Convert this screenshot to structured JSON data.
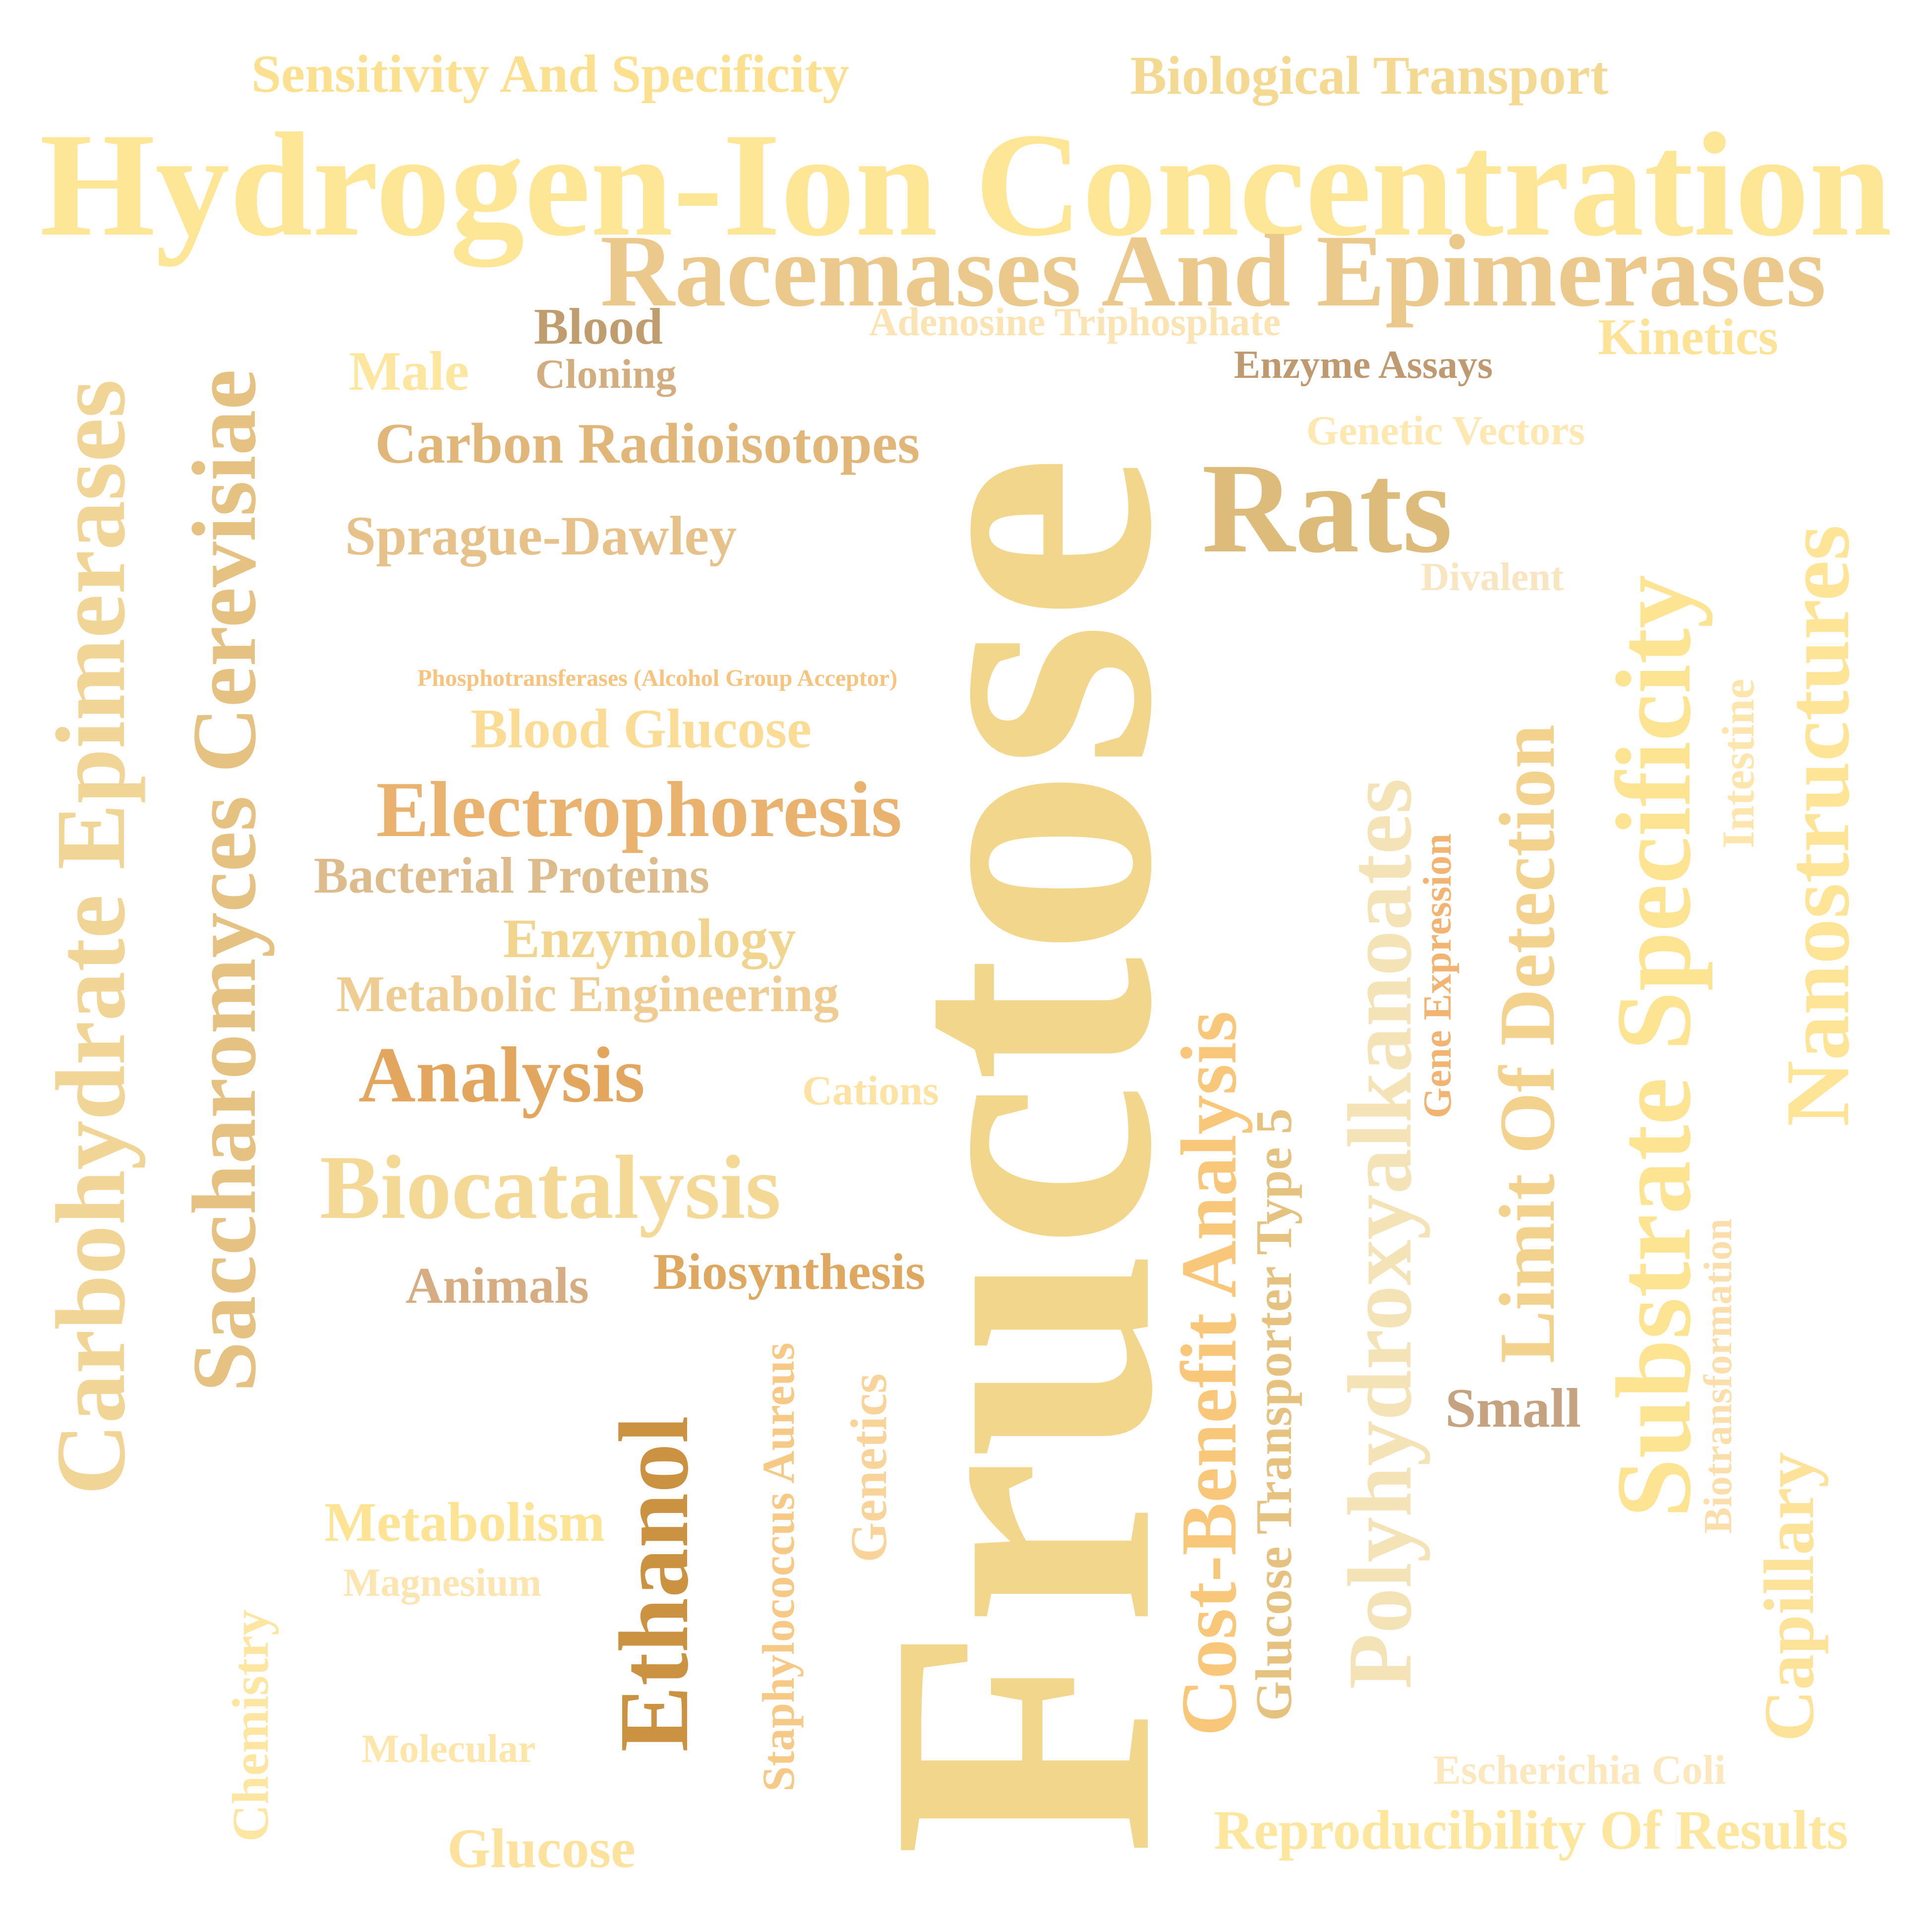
{
  "words": [
    {
      "text": "Fructose",
      "color": "#f1d68c"
    },
    {
      "text": "Hydrogen-Ion Concentration",
      "color": "#fde696"
    },
    {
      "text": "Racemases And Epimerases",
      "color": "#ebc88c"
    },
    {
      "text": "Sensitivity And Specificity",
      "color": "#fbe08f"
    },
    {
      "text": "Biological Transport",
      "color": "#f4d993"
    },
    {
      "text": "Blood",
      "color": "#bf9d6e"
    },
    {
      "text": "Adenosine Triphosphate",
      "color": "#fae4b4"
    },
    {
      "text": "Kinetics",
      "color": "#fde397"
    },
    {
      "text": "Male",
      "color": "#fde69e"
    },
    {
      "text": "Cloning",
      "color": "#d2ad80"
    },
    {
      "text": "Enzyme Assays",
      "color": "#bf9a71"
    },
    {
      "text": "Carbon Radioisotopes",
      "color": "#e0b679"
    },
    {
      "text": "Genetic Vectors",
      "color": "#fde8b1"
    },
    {
      "text": "Rats",
      "color": "#ddbb7b"
    },
    {
      "text": "Sprague-Dawley",
      "color": "#e6c18a"
    },
    {
      "text": "Divalent",
      "color": "#f8e5c1"
    },
    {
      "text": "Phosphotransferases (Alcohol Group Acceptor)",
      "color": "#f6c47e"
    },
    {
      "text": "Blood Glucose",
      "color": "#fbdc95"
    },
    {
      "text": "Electrophoresis",
      "color": "#e9b26f"
    },
    {
      "text": "Bacterial Proteins",
      "color": "#dcbb8c"
    },
    {
      "text": "Enzymology",
      "color": "#f1d48d"
    },
    {
      "text": "Metabolic Engineering",
      "color": "#efcc92"
    },
    {
      "text": "Analysis",
      "color": "#e3a65e"
    },
    {
      "text": "Cations",
      "color": "#fde3a3"
    },
    {
      "text": "Biocatalysis",
      "color": "#f4d996"
    },
    {
      "text": "Animals",
      "color": "#d6ad83"
    },
    {
      "text": "Biosynthesis",
      "color": "#dfa860"
    },
    {
      "text": "Metabolism",
      "color": "#fde394"
    },
    {
      "text": "Magnesium",
      "color": "#fbe5b0"
    },
    {
      "text": "Molecular",
      "color": "#fde6aa"
    },
    {
      "text": "Glucose",
      "color": "#fde29d"
    },
    {
      "text": "Small",
      "color": "#c5a280"
    },
    {
      "text": "Escherichia Coli",
      "color": "#fbe8be"
    },
    {
      "text": "Reproducibility Of Results",
      "color": "#fde79e"
    },
    {
      "text": "Carbohydrate Epimerases",
      "color": "#f0d596"
    },
    {
      "text": "Saccharomyces Cerevisiae",
      "color": "#e5c182"
    },
    {
      "text": "Chemistry",
      "color": "#fde6a2"
    },
    {
      "text": "Ethanol",
      "color": "#cb9241"
    },
    {
      "text": "Staphylococcus Aureus",
      "color": "#f6ca86"
    },
    {
      "text": "Genetics",
      "color": "#f9d49a"
    },
    {
      "text": "Cost-Benefit Analysis",
      "color": "#f8c779"
    },
    {
      "text": "Glucose Transporter Type 5",
      "color": "#e6c281"
    },
    {
      "text": "Polyhydroxyalkanoates",
      "color": "#f3e3b7"
    },
    {
      "text": "Gene Expression",
      "color": "#f2b473"
    },
    {
      "text": "Limit Of Detection",
      "color": "#f3d28e"
    },
    {
      "text": "Substrate Specificity",
      "color": "#fde493"
    },
    {
      "text": "Intestine",
      "color": "#fde6ae"
    },
    {
      "text": "Nanostructures",
      "color": "#fde497"
    },
    {
      "text": "Biotransformation",
      "color": "#fadfac"
    },
    {
      "text": "Capillary",
      "color": "#fde39a"
    }
  ]
}
